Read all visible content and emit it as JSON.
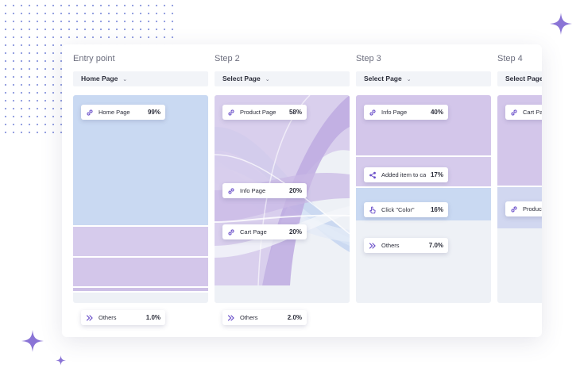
{
  "columns": [
    {
      "title": "Entry point",
      "select": "Home Page"
    },
    {
      "title": "Step 2",
      "select": "Select Page"
    },
    {
      "title": "Step 3",
      "select": "Select Page"
    },
    {
      "title": "Step 4",
      "select": "Select Page"
    }
  ],
  "nodes": {
    "entry_home": {
      "label": "Home Page",
      "percent": "99%",
      "icon": "link-icon"
    },
    "entry_others": {
      "label": "Others",
      "percent": "1.0%",
      "icon": "double-chevron-icon"
    },
    "step2_product": {
      "label": "Product Page",
      "percent": "58%",
      "icon": "link-icon"
    },
    "step2_info": {
      "label": "Info Page",
      "percent": "20%",
      "icon": "link-icon"
    },
    "step2_cart": {
      "label": "Cart Page",
      "percent": "20%",
      "icon": "link-icon"
    },
    "step2_others": {
      "label": "Others",
      "percent": "2.0%",
      "icon": "double-chevron-icon"
    },
    "step3_info": {
      "label": "Info Page",
      "percent": "40%",
      "icon": "link-icon"
    },
    "step3_added": {
      "label": "Added item to cart",
      "percent": "17%",
      "icon": "share-icon"
    },
    "step3_click": {
      "label": "Click \"Color\"",
      "percent": "16%",
      "icon": "pointer-hand-icon"
    },
    "step3_others": {
      "label": "Others",
      "percent": "7.0%",
      "icon": "double-chevron-icon"
    },
    "step4_cart": {
      "label": "Cart Page",
      "percent": "",
      "icon": "link-icon"
    },
    "step4_product": {
      "label": "Product",
      "percent": "",
      "icon": "link-icon"
    }
  },
  "colors": {
    "blue": "#c9d9f2",
    "lavender": "#d3c6ea",
    "lavender_dark": "#b9a5de",
    "grey": "#eef1f6",
    "accent": "#6a4fc9"
  }
}
